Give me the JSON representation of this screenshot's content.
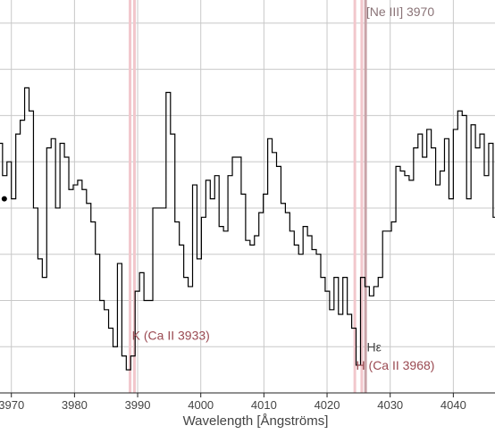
{
  "chart_data": {
    "type": "line",
    "step": true,
    "xlabel": "Wavelength [Ångströms]",
    "xlim": [
      3968.2,
      4046.6
    ],
    "ylim": [
      0,
      8.5
    ],
    "grid": true,
    "x_ticks": [
      3970,
      3980,
      3990,
      4000,
      4010,
      4020,
      4030,
      4040
    ],
    "x_tick_labels": [
      "3970",
      "3980",
      "3990",
      "4000",
      "4010",
      "4020",
      "4030",
      "4040"
    ],
    "y_grid": [
      1,
      2,
      3,
      4,
      5,
      6,
      7,
      8
    ],
    "series": [
      {
        "color": "#000000",
        "x": [
          3968.2,
          3968.6,
          3969.3,
          3970.0,
          3970.7,
          3971.4,
          3972.1,
          3972.8,
          3973.5,
          3974.2,
          3974.9,
          3975.6,
          3976.3,
          3977.0,
          3977.7,
          3978.4,
          3979.1,
          3979.8,
          3980.5,
          3981.2,
          3981.9,
          3982.6,
          3983.3,
          3984.0,
          3984.7,
          3985.4,
          3986.1,
          3986.8,
          3987.5,
          3988.2,
          3988.9,
          3989.6,
          3990.3,
          3991.0,
          3991.7,
          3992.4,
          3993.1,
          3993.8,
          3994.5,
          3995.2,
          3995.9,
          3996.6,
          3997.3,
          3998.0,
          3998.7,
          3999.4,
          4000.1,
          4000.8,
          4001.5,
          4002.2,
          4002.9,
          4003.6,
          4004.3,
          4005.0,
          4005.7,
          4006.4,
          4007.1,
          4007.8,
          4008.5,
          4009.2,
          4009.9,
          4010.6,
          4011.3,
          4012.0,
          4012.7,
          4013.4,
          4014.1,
          4014.8,
          4015.5,
          4016.2,
          4016.9,
          4017.6,
          4018.3,
          4019.0,
          4019.7,
          4020.4,
          4021.1,
          4021.8,
          4022.5,
          4023.2,
          4023.9,
          4024.6,
          4025.3,
          4026.0,
          4026.7,
          4027.4,
          4028.1,
          4028.8,
          4029.5,
          4030.2,
          4030.9,
          4031.6,
          4032.3,
          4033.0,
          4033.7,
          4034.4,
          4035.1,
          4035.8,
          4036.5,
          4037.2,
          4037.9,
          4038.6,
          4039.3,
          4040.0,
          4040.7,
          4041.4,
          4042.1,
          4042.8,
          4043.5,
          4044.2,
          4044.9,
          4045.6,
          4046.3
        ],
        "y": [
          5.4,
          4.7,
          5.0,
          4.2,
          5.6,
          5.9,
          6.6,
          6.1,
          4.0,
          2.9,
          2.5,
          5.3,
          5.5,
          4.0,
          5.4,
          5.1,
          4.4,
          4.5,
          4.6,
          4.4,
          4.1,
          3.7,
          3.0,
          2.0,
          1.8,
          1.4,
          1.0,
          2.8,
          0.8,
          0.5,
          0.8,
          2.2,
          2.6,
          2.0,
          2.0,
          4.0,
          4.0,
          4.0,
          6.5,
          5.6,
          3.7,
          3.2,
          2.5,
          2.3,
          4.5,
          2.9,
          3.8,
          4.6,
          4.2,
          4.7,
          3.6,
          3.5,
          4.7,
          5.1,
          5.1,
          4.3,
          3.3,
          3.2,
          3.4,
          3.9,
          4.3,
          5.5,
          5.2,
          4.9,
          4.1,
          3.9,
          3.5,
          3.2,
          3.0,
          3.6,
          3.4,
          3.1,
          3.0,
          2.5,
          2.2,
          1.8,
          2.5,
          1.7,
          2.5,
          1.7,
          1.4,
          0.6,
          2.5,
          2.3,
          2.1,
          2.3,
          2.5,
          3.5,
          3.5,
          3.7,
          4.9,
          4.8,
          4.7,
          4.6,
          5.3,
          5.6,
          5.1,
          5.7,
          5.3,
          4.5,
          4.8,
          5.5,
          4.2,
          5.7,
          6.1,
          6.0,
          4.2,
          5.8,
          5.3,
          5.6,
          4.7,
          5.4,
          3.8
        ],
        "start_marker": true
      }
    ],
    "vlines": [
      {
        "x": 3988.8,
        "color": "#f2c7cc"
      },
      {
        "x": 3989.5,
        "color": "#f2c7cc"
      },
      {
        "x": 4024.4,
        "color": "#f2c7cc"
      },
      {
        "x": 4025.5,
        "color": "#f2c7cc"
      },
      {
        "x": 4026.1,
        "color": "#c9a3a8"
      }
    ],
    "annotations": [
      {
        "text": "[Ne III] 3970",
        "x": 4026.2,
        "y": 8.15,
        "color": "#8a7377"
      },
      {
        "text": "K (Ca II 3933)",
        "x": 3989.1,
        "y": 1.15,
        "color": "#9a4a52"
      },
      {
        "text": "Hε",
        "x": 4026.3,
        "y": 0.9,
        "color": "#444444"
      },
      {
        "text": "H (Ca II 3968)",
        "x": 4024.6,
        "y": 0.5,
        "color": "#9a4a52"
      }
    ],
    "colors": {
      "grid": "#c8c8c8",
      "axis": "#222222",
      "line": "#000000"
    }
  }
}
